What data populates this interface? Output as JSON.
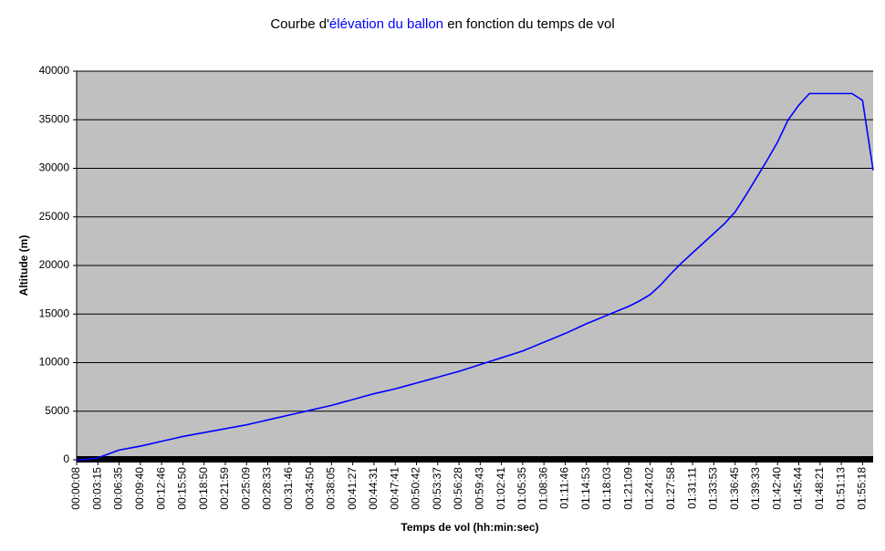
{
  "chart_data": {
    "type": "line",
    "title": [
      "Courbe d'",
      "élévation du ballon",
      " en fonction du temps de vol"
    ],
    "title_highlight_color": "#0000ff",
    "x_label": "Temps de vol (hh:min:sec)",
    "y_label": "Altitude (m)",
    "categories": [
      "00:00:08",
      null,
      "00:03:15",
      null,
      "00:06:35",
      null,
      "00:09:40",
      null,
      "00:12:46",
      null,
      "00:15:50",
      null,
      "00:18:50",
      null,
      "00:21:59",
      null,
      "00:25:09",
      null,
      "00:28:33",
      null,
      "00:31:46",
      null,
      "00:34:50",
      null,
      "00:38:05",
      null,
      "00:41:27",
      null,
      "00:44:31",
      null,
      "00:47:41",
      null,
      "00:50:42",
      null,
      "00:53:37",
      null,
      "00:56:28",
      null,
      "00:59:43",
      null,
      "01:02:41",
      null,
      "01:05:35",
      null,
      "01:08:36",
      null,
      "01:11:46",
      null,
      "01:14:53",
      null,
      "01:18:03",
      null,
      "01:21:09",
      null,
      "01:24:02",
      null,
      "01:27:58",
      null,
      "01:31:11",
      null,
      "01:33:53",
      null,
      "01:36:45",
      null,
      "01:39:33",
      null,
      "01:42:40",
      null,
      "01:45:44",
      null,
      "01:48:21",
      null,
      "01:51:13",
      null,
      "01:55:18",
      null
    ],
    "series": [
      {
        "color": "#0000ff",
        "values": [
          0,
          50,
          200,
          600,
          1000,
          1200,
          1400,
          1650,
          1900,
          2150,
          2400,
          2600,
          2800,
          3000,
          3200,
          3400,
          3600,
          3850,
          4100,
          4350,
          4600,
          4850,
          5100,
          5350,
          5600,
          5900,
          6200,
          6500,
          6800,
          7050,
          7300,
          7600,
          7900,
          8200,
          8500,
          8800,
          9100,
          9450,
          9800,
          10150,
          10500,
          10850,
          11200,
          11650,
          12100,
          12550,
          13000,
          13500,
          14000,
          14450,
          14900,
          15350,
          15800,
          16350,
          17000,
          18000,
          19200,
          20300,
          21300,
          22300,
          23300,
          24300,
          25500,
          27200,
          29000,
          30800,
          32700,
          35000,
          36500,
          37700,
          37700,
          37700,
          37700,
          37700,
          37000,
          29800
        ]
      }
    ],
    "ylim": [
      0,
      40000
    ],
    "yticks": [
      0,
      5000,
      10000,
      15000,
      20000,
      25000,
      30000,
      35000,
      40000
    ],
    "grid": true,
    "plot_background": "#c0c0c0"
  }
}
